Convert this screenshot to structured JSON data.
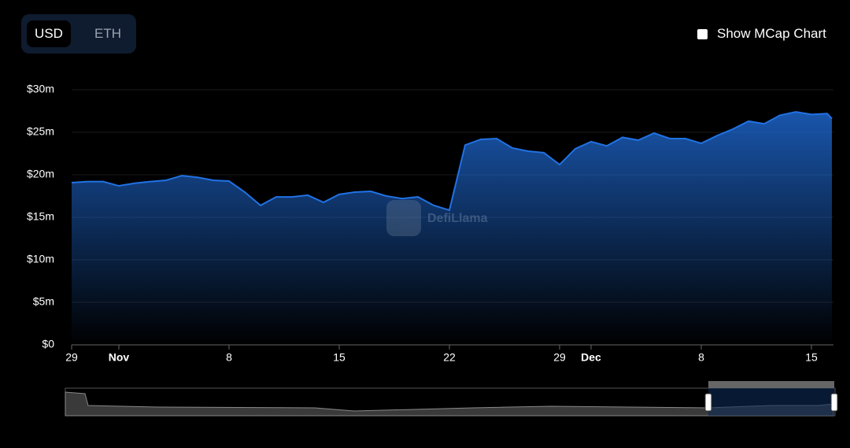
{
  "toggle": {
    "options": [
      "USD",
      "ETH"
    ]
  },
  "checkbox_label": "Show MCap Chart",
  "watermark": "DefiLlama",
  "chart_data": {
    "type": "area",
    "x": [
      0,
      1,
      2,
      3,
      4,
      5,
      6,
      7,
      8,
      9,
      10,
      11,
      12,
      13,
      14,
      15,
      16,
      17,
      18,
      19,
      20,
      21,
      22,
      23,
      24,
      25,
      26,
      27,
      28,
      29,
      30,
      31,
      32,
      33,
      34,
      35,
      36,
      37,
      38,
      39,
      40,
      41,
      42,
      43,
      44,
      45,
      46,
      47,
      48,
      48.3
    ],
    "series": [
      {
        "color": "#2172e5",
        "values": [
          19.07,
          19.2,
          19.2,
          18.7,
          19.0,
          19.2,
          19.35,
          19.9,
          19.7,
          19.35,
          19.26,
          17.96,
          16.4,
          17.4,
          17.4,
          17.6,
          16.76,
          17.7,
          17.96,
          18.05,
          17.5,
          17.2,
          17.4,
          16.4,
          15.83,
          23.5,
          24.17,
          24.26,
          23.15,
          22.78,
          22.6,
          21.2,
          23.06,
          23.9,
          23.4,
          24.4,
          24.07,
          24.9,
          24.26,
          24.26,
          23.7,
          24.6,
          25.37,
          26.3,
          26.0,
          27.0,
          27.4,
          27.1,
          27.2,
          26.6
        ]
      }
    ],
    "xlim": [
      0,
      48.3
    ],
    "xticks": [
      {
        "value": 0,
        "label": "29"
      },
      {
        "value": 3,
        "label": "Nov"
      },
      {
        "value": 10,
        "label": "8"
      },
      {
        "value": 17,
        "label": "15"
      },
      {
        "value": 24,
        "label": "22"
      },
      {
        "value": 31,
        "label": "29"
      },
      {
        "value": 33,
        "label": "Dec"
      },
      {
        "value": 40,
        "label": "8"
      },
      {
        "value": 47,
        "label": "15"
      }
    ],
    "ylim": [
      0,
      30
    ],
    "yticks": [
      {
        "value": 0,
        "label": "$0"
      },
      {
        "value": 5,
        "label": "$5m"
      },
      {
        "value": 10,
        "label": "$10m"
      },
      {
        "value": 15,
        "label": "$15m"
      },
      {
        "value": 20,
        "label": "$20m"
      },
      {
        "value": 25,
        "label": "$25m"
      },
      {
        "value": 30,
        "label": "$30m"
      }
    ],
    "grid": true
  }
}
